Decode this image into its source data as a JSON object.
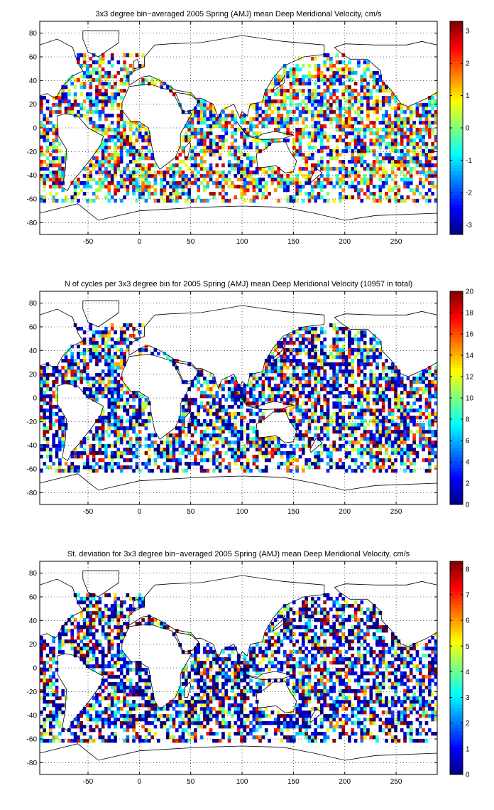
{
  "chart_data": [
    {
      "type": "heatmap",
      "title": "3x3 degree bin−averaged 2005 Spring (AMJ) mean Deep Meridional Velocity, cm/s",
      "xlim": [
        -97,
        290
      ],
      "ylim": [
        -90,
        90
      ],
      "x_ticks": [
        -50,
        0,
        50,
        100,
        150,
        200,
        250
      ],
      "y_ticks": [
        80,
        60,
        40,
        20,
        0,
        -20,
        -40,
        -60,
        -80
      ],
      "grid": true,
      "colorbar": {
        "min": -3.3,
        "max": 3.3,
        "ticks": [
          3,
          2,
          1,
          0,
          -1,
          -2,
          -3
        ],
        "colormap": "jet"
      },
      "bin_size_deg": 3,
      "seed": 11
    },
    {
      "type": "heatmap",
      "title": "N of cycles per 3x3 degree bin for 2005 Spring (AMJ) mean Deep Meridional Velocity (10957 in total)",
      "xlim": [
        -97,
        290
      ],
      "ylim": [
        -90,
        90
      ],
      "x_ticks": [
        -50,
        0,
        50,
        100,
        150,
        200,
        250
      ],
      "y_ticks": [
        80,
        60,
        40,
        20,
        0,
        -20,
        -40,
        -60,
        -80
      ],
      "grid": true,
      "colorbar": {
        "min": 0,
        "max": 20,
        "ticks": [
          20,
          18,
          16,
          14,
          12,
          10,
          8,
          6,
          4,
          2,
          0
        ],
        "colormap": "jet"
      },
      "bin_size_deg": 3,
      "seed": 23
    },
    {
      "type": "heatmap",
      "title": "St. deviation for 3x3 degree bin−averaged 2005 Spring (AMJ) mean Deep Meridional Velocity, cm/s",
      "xlim": [
        -97,
        290
      ],
      "ylim": [
        -90,
        90
      ],
      "x_ticks": [
        -50,
        0,
        50,
        100,
        150,
        200,
        250
      ],
      "y_ticks": [
        80,
        60,
        40,
        20,
        0,
        -20,
        -40,
        -60,
        -80
      ],
      "grid": true,
      "colorbar": {
        "min": 0,
        "max": 8.3,
        "ticks": [
          8,
          7,
          6,
          5,
          4,
          3,
          2,
          1,
          0
        ],
        "colormap": "jet"
      },
      "bin_size_deg": 3,
      "seed": 37
    }
  ]
}
